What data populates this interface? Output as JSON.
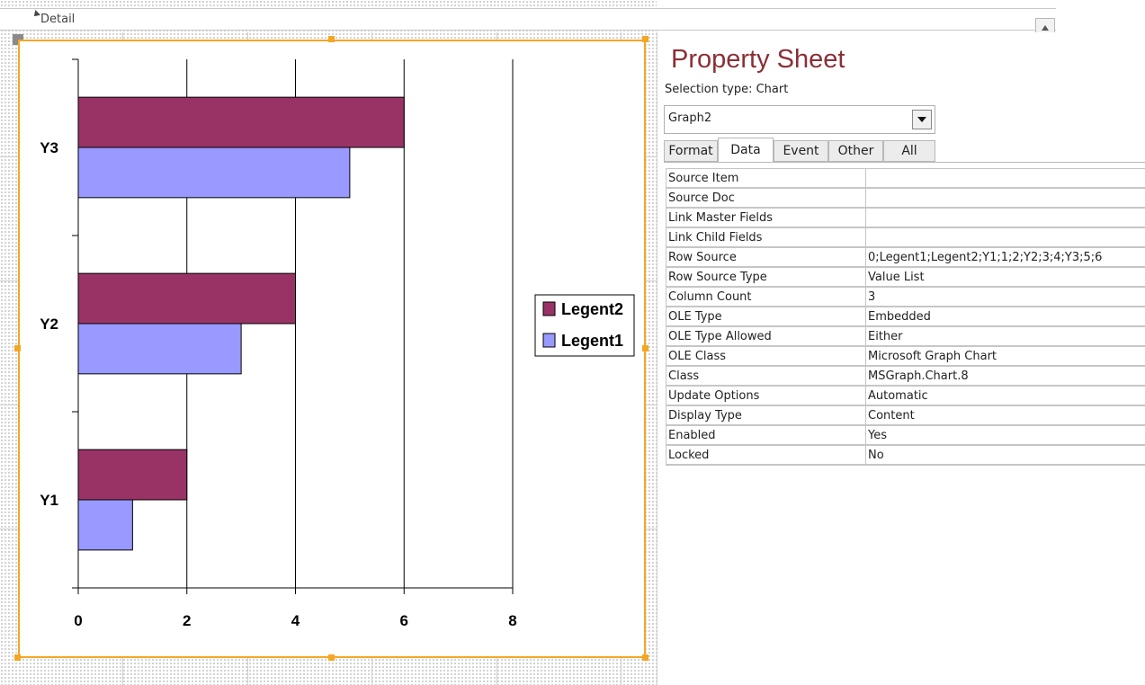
{
  "section": {
    "label": "Detail"
  },
  "chart_data": {
    "type": "bar",
    "orientation": "horizontal",
    "categories": [
      "Y1",
      "Y2",
      "Y3"
    ],
    "series": [
      {
        "name": "Legent1",
        "values": [
          1,
          3,
          5
        ],
        "color": "#9999ff"
      },
      {
        "name": "Legent2",
        "values": [
          2,
          4,
          6
        ],
        "color": "#993366"
      }
    ],
    "xticks": [
      "0",
      "2",
      "4",
      "6",
      "8"
    ],
    "xlim": [
      0,
      8
    ],
    "grid": "vertical major gridlines",
    "legend_position": "right",
    "title": "",
    "xlabel": "",
    "ylabel": ""
  },
  "property_sheet": {
    "title": "Property Sheet",
    "selection_type": "Selection type:  Chart",
    "object_name": "Graph2",
    "tabs": [
      {
        "label": "Format",
        "active": false
      },
      {
        "label": "Data",
        "active": true
      },
      {
        "label": "Event",
        "active": false
      },
      {
        "label": "Other",
        "active": false
      },
      {
        "label": "All",
        "active": false
      }
    ],
    "properties": [
      {
        "name": "Source Item",
        "value": ""
      },
      {
        "name": "Source Doc",
        "value": ""
      },
      {
        "name": "Link Master Fields",
        "value": ""
      },
      {
        "name": "Link Child Fields",
        "value": ""
      },
      {
        "name": "Row Source",
        "value": "0;Legent1;Legent2;Y1;1;2;Y2;3;4;Y3;5;6"
      },
      {
        "name": "Row Source Type",
        "value": "Value List"
      },
      {
        "name": "Column Count",
        "value": "3"
      },
      {
        "name": "OLE Type",
        "value": "Embedded"
      },
      {
        "name": "OLE Type Allowed",
        "value": "Either"
      },
      {
        "name": "OLE Class",
        "value": "Microsoft Graph Chart"
      },
      {
        "name": "Class",
        "value": "MSGraph.Chart.8"
      },
      {
        "name": "Update Options",
        "value": "Automatic"
      },
      {
        "name": "Display Type",
        "value": "Content"
      },
      {
        "name": "Enabled",
        "value": "Yes"
      },
      {
        "name": "Locked",
        "value": "No"
      }
    ]
  },
  "colors": {
    "selection": "#f5a623",
    "title": "#8b2f36"
  },
  "icons": {
    "detail": "section-collapse-icon",
    "scroll": "scroll-up-arrow-icon",
    "dropdown": "dropdown-arrow-icon"
  }
}
